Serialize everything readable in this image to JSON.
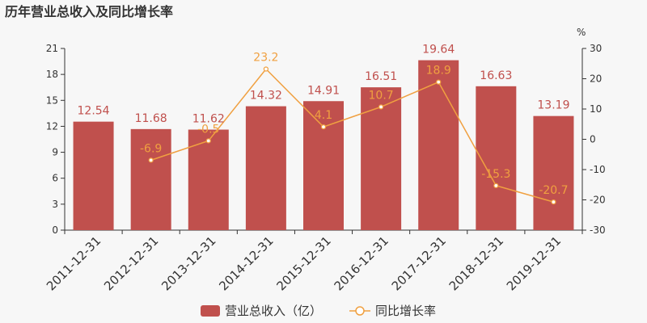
{
  "chart_data": {
    "type": "bar",
    "title": "历年营业总收入及同比增长率",
    "categories": [
      "2011-12-31",
      "2012-12-31",
      "2013-12-31",
      "2014-12-31",
      "2015-12-31",
      "2016-12-31",
      "2017-12-31",
      "2018-12-31",
      "2019-12-31"
    ],
    "series": [
      {
        "name": "营业总收入（亿）",
        "type": "bar",
        "axis": "left",
        "color": "#c0504d",
        "values": [
          12.54,
          11.68,
          11.62,
          14.32,
          14.91,
          16.51,
          19.64,
          16.63,
          13.19
        ],
        "labels": [
          "12.54",
          "11.68",
          "11.62",
          "14.32",
          "14.91",
          "16.51",
          "19.64",
          "16.63",
          "13.19"
        ]
      },
      {
        "name": "同比增长率",
        "type": "line",
        "axis": "right",
        "color": "#f0a040",
        "values": [
          null,
          -6.9,
          -0.5,
          23.2,
          4.1,
          10.7,
          18.9,
          -15.3,
          -20.7
        ],
        "labels": [
          "",
          "-6.9",
          "-0.5",
          "23.2",
          "4.1",
          "10.7",
          "18.9",
          "-15.3",
          "-20.7"
        ]
      }
    ],
    "y_left": {
      "min": 0,
      "max": 21,
      "ticks": [
        "0",
        "3",
        "6",
        "9",
        "12",
        "15",
        "18",
        "21"
      ]
    },
    "y_right": {
      "min": -30,
      "max": 30,
      "unit": "%",
      "ticks": [
        "-30",
        "-20",
        "-10",
        "0",
        "10",
        "20",
        "30"
      ]
    },
    "legend_position": "bottom"
  }
}
